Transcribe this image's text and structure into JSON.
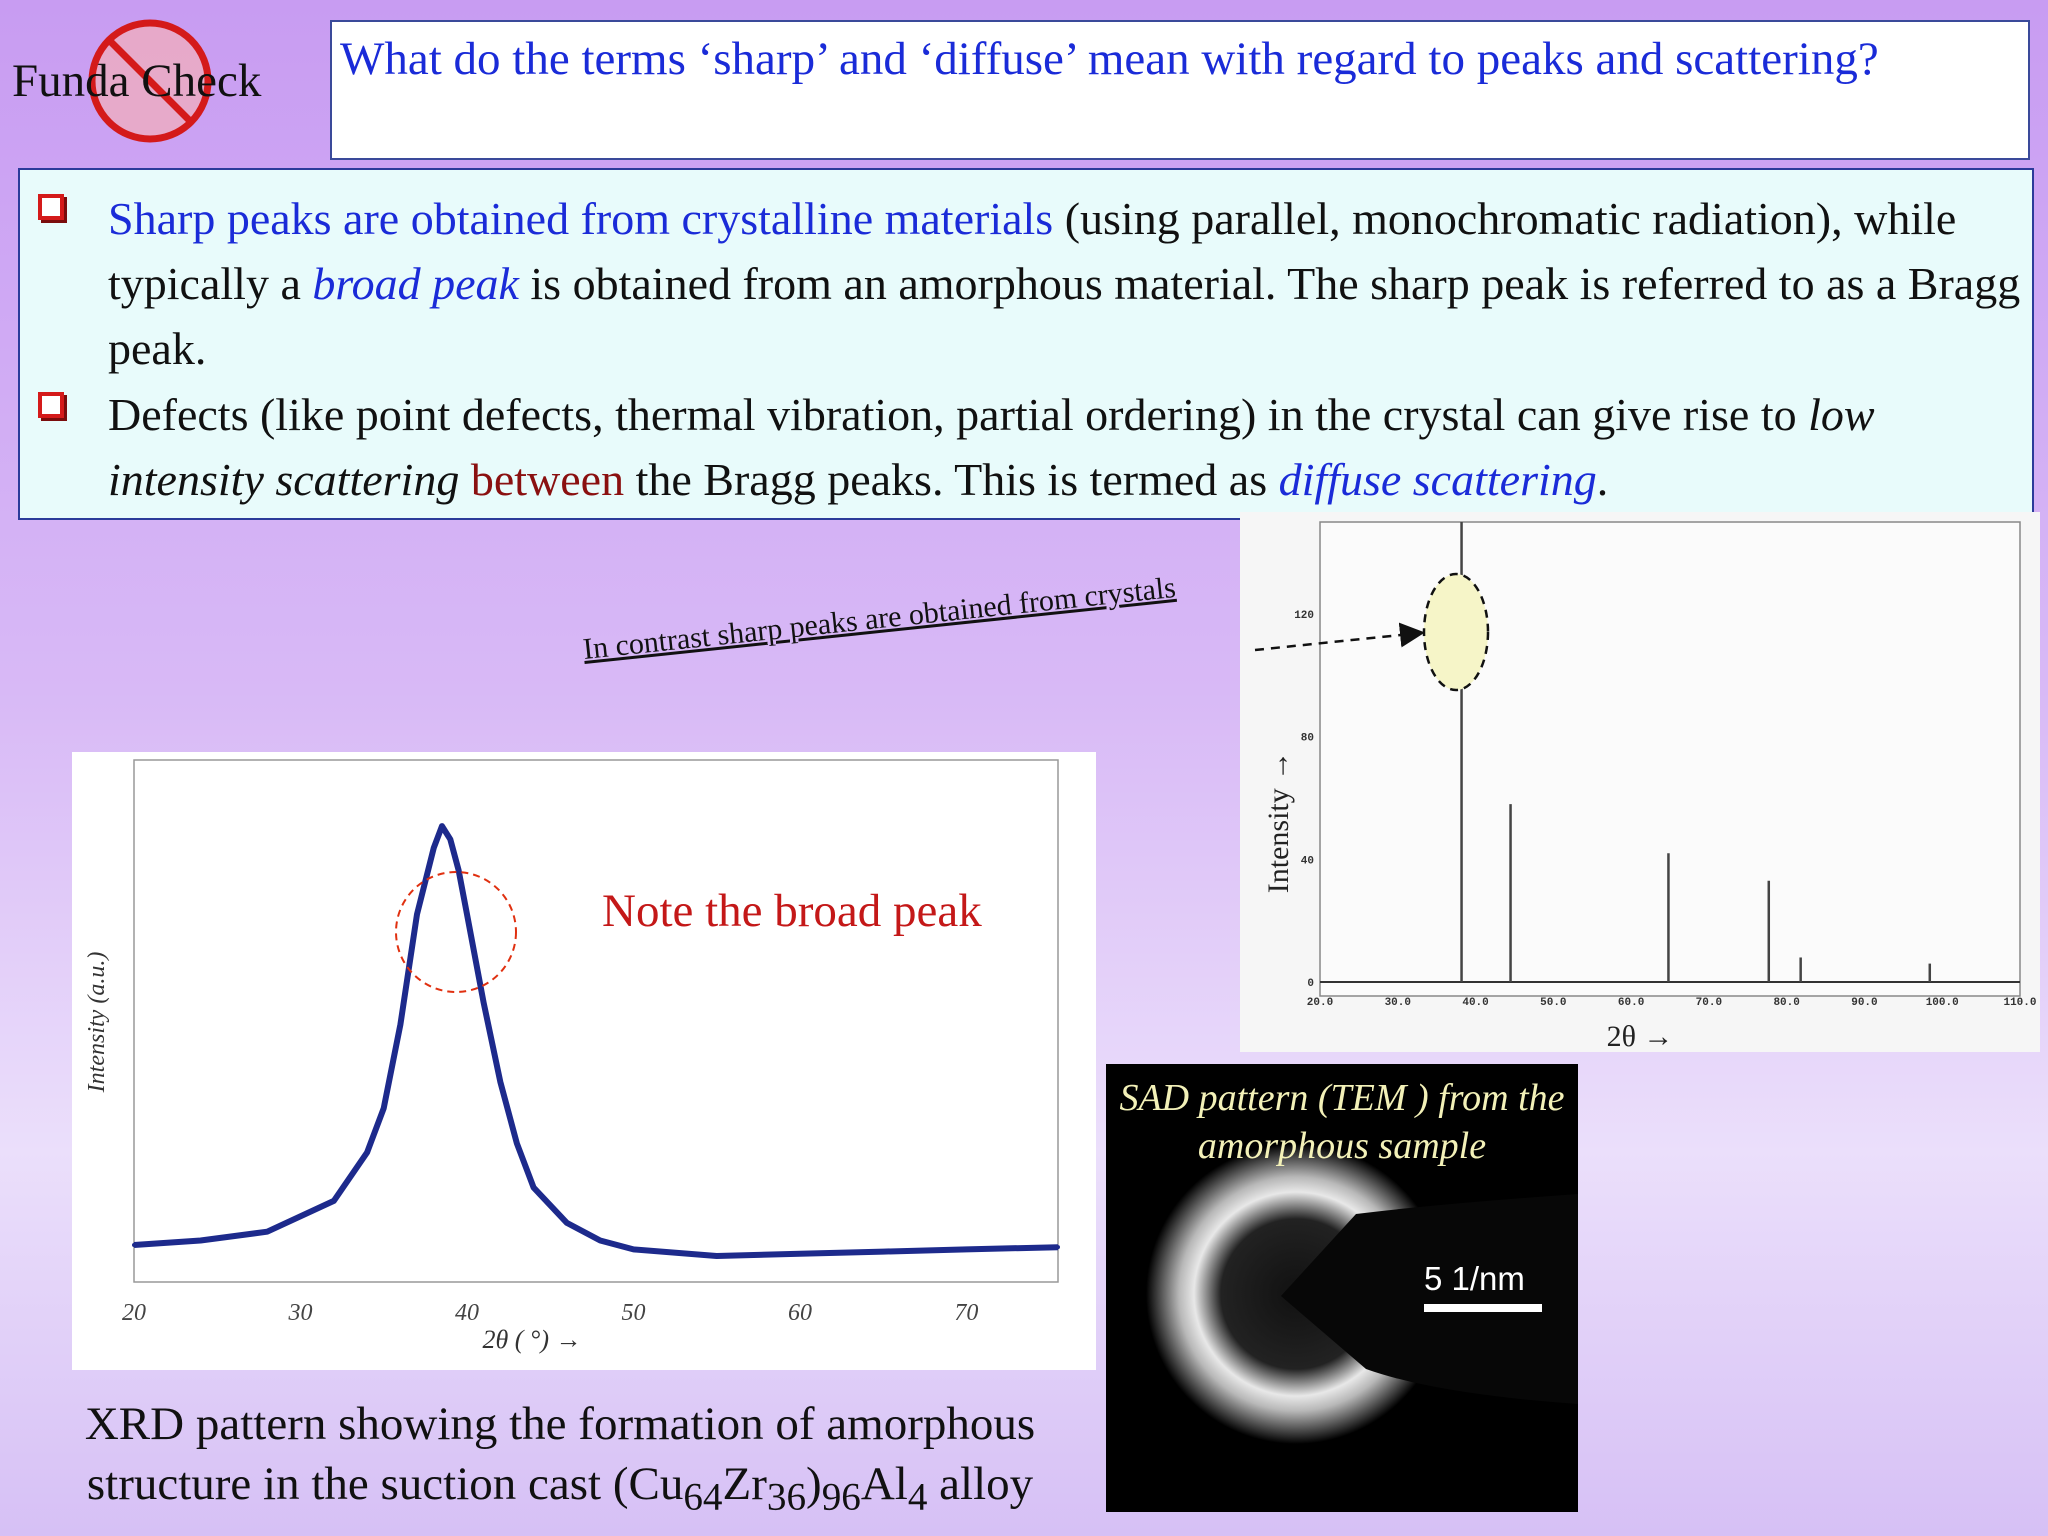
{
  "header": {
    "funda_check": "Funda Check",
    "question": "What do the terms ‘sharp’ and ‘diffuse’ mean with regard to peaks and scattering?"
  },
  "bullets": [
    {
      "p1_blue": "Sharp peaks are obtained from crystalline materials",
      "p1_rest": " (using parallel, monochromatic radiation), while typically a ",
      "p1_italic": "broad peak",
      "p1_tail": " is obtained from an amorphous material. The sharp peak is referred to as a Bragg peak."
    },
    {
      "p2_a": "Defects (like point defects, thermal vibration, partial ordering) in the crystal can give rise to ",
      "p2_italic": "low intensity scattering",
      "p2_space": " ",
      "p2_maroon": "between",
      "p2_b": " the Bragg peaks. This is termed as ",
      "p2_blue_italic": "diffuse scattering",
      "p2_end": "."
    }
  ],
  "annotations": {
    "broad_note": "Note the broad peak",
    "contrast_note": "In contrast sharp peaks are obtained from crystals"
  },
  "tem": {
    "caption_line1": "SAD pattern (TEM ) from the",
    "caption_line2": "amorphous sample",
    "scale_label": "5 1/nm"
  },
  "xrd_caption": {
    "line1": "XRD pattern showing the formation of amorphous",
    "line2_pre": "structure in the suction cast (Cu",
    "sub1": "64",
    "zr": "Zr",
    "sub2": "36",
    "close": ")",
    "sub3": "96",
    "al": "Al",
    "sub4": "4",
    "alloy": " alloy"
  },
  "chart_data": [
    {
      "type": "line",
      "title": "",
      "xlabel": "2θ ( °)  →",
      "ylabel": "Intensity (a.u.)",
      "x_ticks": [
        "20",
        "30",
        "40",
        "50",
        "60",
        "70"
      ],
      "xlim": [
        20,
        75.5
      ],
      "x": [
        20,
        24,
        28,
        32,
        34,
        35,
        36,
        37,
        38,
        38.5,
        39,
        39.5,
        40,
        41,
        42,
        43,
        44,
        46,
        48,
        50,
        55,
        60,
        65,
        70,
        75.5
      ],
      "y": [
        0.05,
        0.06,
        0.08,
        0.15,
        0.26,
        0.36,
        0.55,
        0.8,
        0.95,
        1.0,
        0.97,
        0.9,
        0.8,
        0.6,
        0.42,
        0.28,
        0.18,
        0.1,
        0.06,
        0.04,
        0.025,
        0.03,
        0.035,
        0.04,
        0.045
      ],
      "ylim": [
        0,
        1.1
      ]
    },
    {
      "type": "line",
      "xlabel": "2θ →",
      "ylabel": "Intensity →",
      "x_ticks": [
        "20.0",
        "30.0",
        "40.0",
        "50.0",
        "60.0",
        "70.0",
        "80.0",
        "90.0",
        "100.0",
        "110.0"
      ],
      "y_ticks": [
        "0",
        "40",
        "80",
        "120"
      ],
      "xlim": [
        20,
        110
      ],
      "ylim": [
        0,
        150
      ],
      "series": [
        {
          "peaks_2theta": [
            38.2,
            44.5,
            64.8,
            77.7,
            81.8,
            98.4
          ],
          "peaks_intensity": [
            150,
            58,
            42,
            33,
            8,
            6
          ]
        }
      ]
    }
  ],
  "colors": {
    "question_blue": "#1a2bd8",
    "bullet_red": "#d41a1a",
    "broad_note_red": "#c41818",
    "xrd_line": "#1d2a8c"
  }
}
